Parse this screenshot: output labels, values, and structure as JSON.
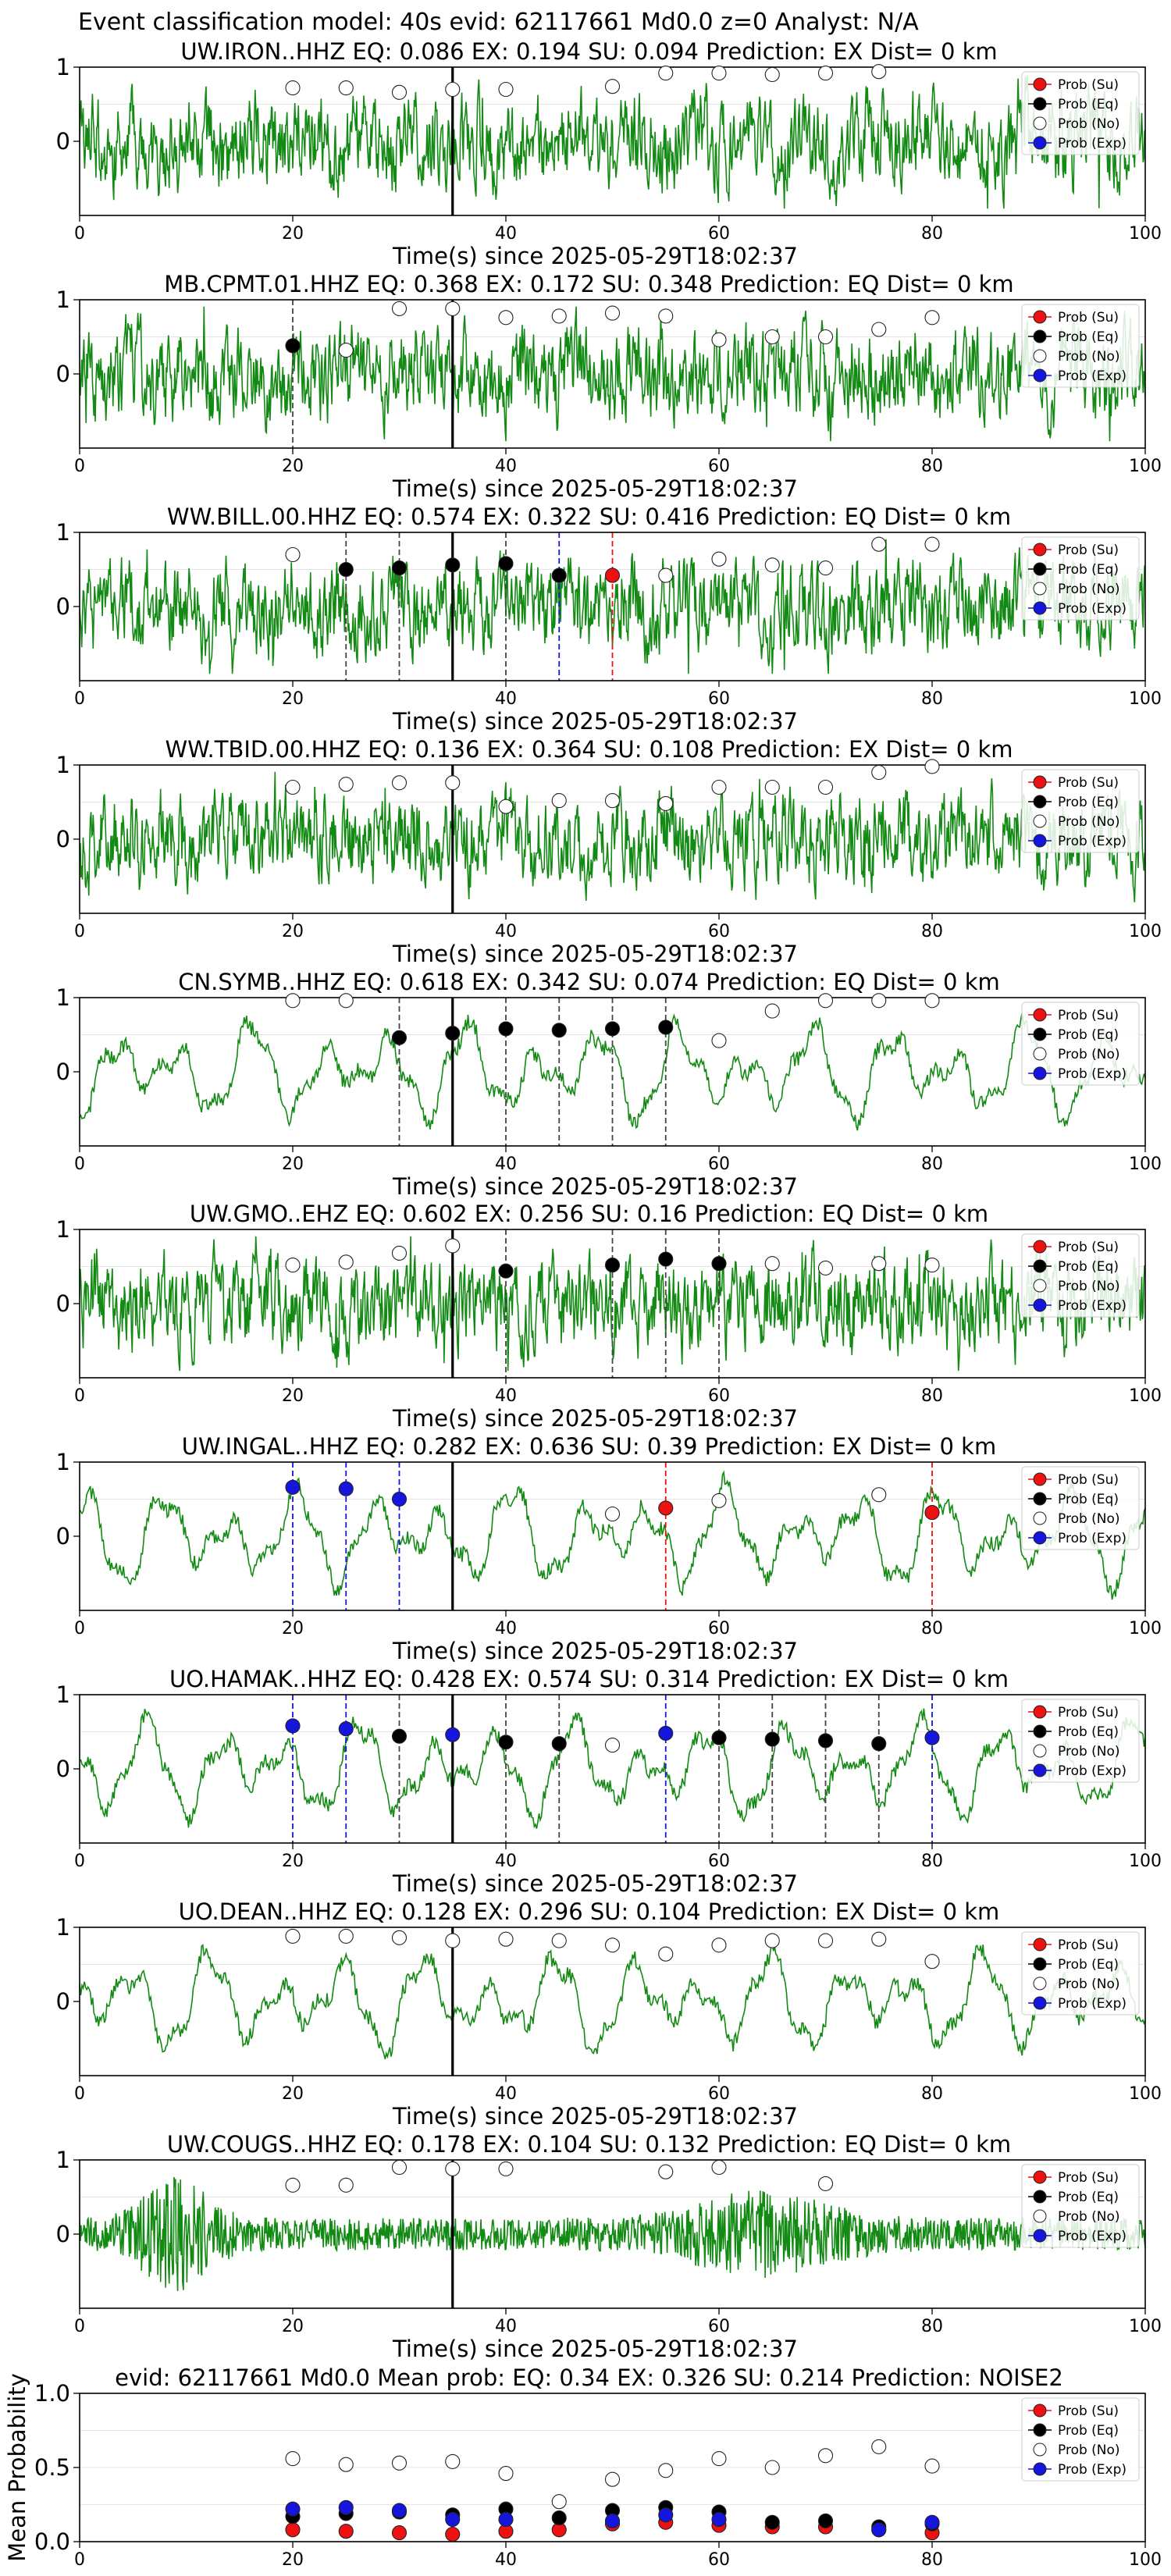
{
  "figure": {
    "suptitle": "Event classification model: 40s evid: 62117661 Md0.0 z=0 Analyst: N/A",
    "legend_labels": [
      "Prob (Su)",
      "Prob (Eq)",
      "Prob (No)",
      "Prob (Exp)"
    ],
    "colors": {
      "su": "#ee1111",
      "eq": "#000000",
      "no": "#ffffff",
      "exp": "#1515dd",
      "trace": "#138a13"
    }
  },
  "chart_data": [
    {
      "type": "line",
      "title": "UW.IRON..HHZ   EQ: 0.086  EX: 0.194  SU: 0.094   Prediction: EX    Dist= 0 km",
      "xlabel": "Time(s) since 2025-05-29T18:02:37",
      "xlim": [
        0,
        100
      ],
      "ylim": [
        -1,
        1
      ],
      "xticks": [
        0,
        20,
        40,
        60,
        80,
        100
      ],
      "yticks": [
        0,
        1
      ],
      "onset": 35,
      "trace_style": "spiky",
      "windows": [
        20,
        25,
        30,
        35,
        40,
        45,
        50,
        55,
        60,
        65,
        70,
        75,
        80
      ],
      "series": [
        {
          "name": "Prob (No)",
          "y": [
            0.72,
            0.72,
            0.66,
            0.7,
            0.7,
            null,
            0.74,
            0.92,
            0.92,
            0.9,
            0.92,
            0.94,
            null
          ]
        }
      ],
      "dashed_lines": []
    },
    {
      "type": "line",
      "title": "MB.CPMT.01.HHZ   EQ: 0.368  EX: 0.172  SU: 0.348   Prediction: EQ    Dist= 0 km",
      "xlabel": "Time(s) since 2025-05-29T18:02:37",
      "xlim": [
        0,
        100
      ],
      "ylim": [
        -1,
        1
      ],
      "xticks": [
        0,
        20,
        40,
        60,
        80,
        100
      ],
      "yticks": [
        0,
        1
      ],
      "onset": 35,
      "trace_style": "spiky",
      "windows": [
        20,
        25,
        30,
        35,
        40,
        45,
        50,
        55,
        60,
        65,
        70,
        75,
        80
      ],
      "series": [
        {
          "name": "Prob (Eq)",
          "y": [
            0.38,
            null,
            null,
            null,
            null,
            null,
            null,
            null,
            null,
            null,
            null,
            null,
            null
          ]
        },
        {
          "name": "Prob (No)",
          "y": [
            null,
            0.32,
            0.88,
            0.88,
            0.76,
            0.78,
            0.82,
            0.78,
            0.46,
            0.5,
            0.5,
            0.6,
            0.76
          ]
        }
      ],
      "dashed_lines": [
        {
          "x": 20,
          "color": "#444444"
        }
      ]
    },
    {
      "type": "line",
      "title": "WW.BILL.00.HHZ   EQ: 0.574  EX: 0.322  SU: 0.416   Prediction: EQ    Dist= 0 km",
      "xlabel": "Time(s) since 2025-05-29T18:02:37",
      "xlim": [
        0,
        100
      ],
      "ylim": [
        -1,
        1
      ],
      "xticks": [
        0,
        20,
        40,
        60,
        80,
        100
      ],
      "yticks": [
        0,
        1
      ],
      "onset": 35,
      "trace_style": "spiky",
      "windows": [
        20,
        25,
        30,
        35,
        40,
        45,
        50,
        55,
        60,
        65,
        70,
        75,
        80
      ],
      "series": [
        {
          "name": "Prob (Su)",
          "y": [
            null,
            null,
            null,
            null,
            null,
            null,
            0.42,
            null,
            null,
            null,
            null,
            null,
            null
          ]
        },
        {
          "name": "Prob (Eq)",
          "y": [
            null,
            0.5,
            0.52,
            0.56,
            0.58,
            0.42,
            null,
            null,
            null,
            null,
            null,
            null,
            null
          ]
        },
        {
          "name": "Prob (No)",
          "y": [
            0.7,
            null,
            null,
            null,
            null,
            null,
            null,
            0.42,
            0.64,
            0.56,
            0.52,
            0.84,
            0.84
          ]
        }
      ],
      "dashed_lines": [
        {
          "x": 25,
          "color": "#444444"
        },
        {
          "x": 30,
          "color": "#444444"
        },
        {
          "x": 40,
          "color": "#444444"
        },
        {
          "x": 45,
          "color": "#1515dd"
        },
        {
          "x": 50,
          "color": "#ee1111"
        }
      ]
    },
    {
      "type": "line",
      "title": "WW.TBID.00.HHZ   EQ: 0.136  EX: 0.364  SU: 0.108   Prediction: EX    Dist= 0 km",
      "xlabel": "Time(s) since 2025-05-29T18:02:37",
      "xlim": [
        0,
        100
      ],
      "ylim": [
        -1,
        1
      ],
      "xticks": [
        0,
        20,
        40,
        60,
        80,
        100
      ],
      "yticks": [
        0,
        1
      ],
      "onset": 35,
      "trace_style": "spiky",
      "windows": [
        20,
        25,
        30,
        35,
        40,
        45,
        50,
        55,
        60,
        65,
        70,
        75,
        80
      ],
      "series": [
        {
          "name": "Prob (No)",
          "y": [
            0.7,
            0.74,
            0.76,
            0.76,
            0.44,
            0.52,
            0.52,
            0.48,
            0.7,
            0.7,
            0.7,
            0.9,
            0.98
          ]
        }
      ],
      "dashed_lines": []
    },
    {
      "type": "line",
      "title": "CN.SYMB..HHZ   EQ: 0.618  EX: 0.342  SU: 0.074   Prediction: EQ    Dist= 0 km",
      "xlabel": "Time(s) since 2025-05-29T18:02:37",
      "xlim": [
        0,
        100
      ],
      "ylim": [
        -1,
        1
      ],
      "xticks": [
        0,
        20,
        40,
        60,
        80,
        100
      ],
      "yticks": [
        0,
        1
      ],
      "onset": 35,
      "trace_style": "smooth",
      "windows": [
        20,
        25,
        30,
        35,
        40,
        45,
        50,
        55,
        60,
        65,
        70,
        75,
        80
      ],
      "series": [
        {
          "name": "Prob (Eq)",
          "y": [
            null,
            null,
            0.46,
            0.52,
            0.58,
            0.56,
            0.58,
            0.6,
            null,
            null,
            null,
            null,
            null
          ]
        },
        {
          "name": "Prob (No)",
          "y": [
            0.96,
            0.96,
            null,
            null,
            null,
            null,
            null,
            null,
            0.42,
            0.82,
            0.96,
            0.96,
            0.96
          ]
        }
      ],
      "dashed_lines": [
        {
          "x": 30,
          "color": "#444444"
        },
        {
          "x": 40,
          "color": "#444444"
        },
        {
          "x": 45,
          "color": "#444444"
        },
        {
          "x": 50,
          "color": "#444444"
        },
        {
          "x": 55,
          "color": "#444444"
        }
      ]
    },
    {
      "type": "line",
      "title": "UW.GMO..EHZ   EQ: 0.602  EX: 0.256  SU: 0.16   Prediction: EQ    Dist= 0 km",
      "xlabel": "Time(s) since 2025-05-29T18:02:37",
      "xlim": [
        0,
        100
      ],
      "ylim": [
        -1,
        1
      ],
      "xticks": [
        0,
        20,
        40,
        60,
        80,
        100
      ],
      "yticks": [
        0,
        1
      ],
      "onset": 35,
      "trace_style": "spiky",
      "windows": [
        20,
        25,
        30,
        35,
        40,
        45,
        50,
        55,
        60,
        65,
        70,
        75,
        80
      ],
      "series": [
        {
          "name": "Prob (Eq)",
          "y": [
            null,
            null,
            null,
            null,
            0.44,
            null,
            0.52,
            0.6,
            0.54,
            null,
            null,
            null,
            null
          ]
        },
        {
          "name": "Prob (No)",
          "y": [
            0.52,
            0.56,
            0.68,
            0.78,
            null,
            null,
            null,
            null,
            null,
            0.54,
            0.48,
            0.54,
            0.52
          ]
        }
      ],
      "dashed_lines": [
        {
          "x": 40,
          "color": "#444444"
        },
        {
          "x": 50,
          "color": "#444444"
        },
        {
          "x": 55,
          "color": "#444444"
        },
        {
          "x": 60,
          "color": "#444444"
        }
      ]
    },
    {
      "type": "line",
      "title": "UW.INGAL..HHZ   EQ: 0.282  EX: 0.636  SU: 0.39   Prediction: EX    Dist= 0 km",
      "xlabel": "Time(s) since 2025-05-29T18:02:37",
      "xlim": [
        0,
        100
      ],
      "ylim": [
        -1,
        1
      ],
      "xticks": [
        0,
        20,
        40,
        60,
        80,
        100
      ],
      "yticks": [
        0,
        1
      ],
      "onset": 35,
      "trace_style": "smooth",
      "windows": [
        20,
        25,
        30,
        35,
        40,
        45,
        50,
        55,
        60,
        65,
        70,
        75,
        80
      ],
      "series": [
        {
          "name": "Prob (Su)",
          "y": [
            null,
            null,
            null,
            null,
            null,
            null,
            null,
            0.38,
            null,
            null,
            null,
            null,
            0.32
          ]
        },
        {
          "name": "Prob (No)",
          "y": [
            null,
            null,
            null,
            null,
            null,
            null,
            0.3,
            null,
            0.48,
            null,
            null,
            0.56,
            null
          ]
        },
        {
          "name": "Prob (Exp)",
          "y": [
            0.66,
            0.64,
            0.5,
            null,
            null,
            null,
            null,
            null,
            null,
            null,
            null,
            null,
            null
          ]
        }
      ],
      "dashed_lines": [
        {
          "x": 20,
          "color": "#1515dd"
        },
        {
          "x": 25,
          "color": "#1515dd"
        },
        {
          "x": 30,
          "color": "#1515dd"
        },
        {
          "x": 55,
          "color": "#ee1111"
        },
        {
          "x": 80,
          "color": "#ee1111"
        }
      ]
    },
    {
      "type": "line",
      "title": "UO.HAMAK..HHZ   EQ: 0.428  EX: 0.574  SU: 0.314   Prediction: EX    Dist= 0 km",
      "xlabel": "Time(s) since 2025-05-29T18:02:37",
      "xlim": [
        0,
        100
      ],
      "ylim": [
        -1,
        1
      ],
      "xticks": [
        0,
        20,
        40,
        60,
        80,
        100
      ],
      "yticks": [
        0,
        1
      ],
      "onset": 35,
      "trace_style": "smooth",
      "windows": [
        20,
        25,
        30,
        35,
        40,
        45,
        50,
        55,
        60,
        65,
        70,
        75,
        80
      ],
      "series": [
        {
          "name": "Prob (Eq)",
          "y": [
            null,
            null,
            0.44,
            null,
            0.36,
            0.34,
            null,
            null,
            0.42,
            0.4,
            0.38,
            0.34,
            null
          ]
        },
        {
          "name": "Prob (No)",
          "y": [
            null,
            null,
            null,
            null,
            null,
            null,
            0.32,
            null,
            null,
            null,
            null,
            null,
            null
          ]
        },
        {
          "name": "Prob (Exp)",
          "y": [
            0.58,
            0.54,
            null,
            0.46,
            null,
            null,
            null,
            0.48,
            null,
            null,
            null,
            null,
            0.42
          ]
        }
      ],
      "dashed_lines": [
        {
          "x": 20,
          "color": "#1515dd"
        },
        {
          "x": 25,
          "color": "#1515dd"
        },
        {
          "x": 30,
          "color": "#444444"
        },
        {
          "x": 40,
          "color": "#444444"
        },
        {
          "x": 45,
          "color": "#444444"
        },
        {
          "x": 55,
          "color": "#1515dd"
        },
        {
          "x": 60,
          "color": "#444444"
        },
        {
          "x": 65,
          "color": "#444444"
        },
        {
          "x": 70,
          "color": "#444444"
        },
        {
          "x": 75,
          "color": "#444444"
        },
        {
          "x": 80,
          "color": "#1515dd"
        }
      ]
    },
    {
      "type": "line",
      "title": "UO.DEAN..HHZ   EQ: 0.128  EX: 0.296  SU: 0.104   Prediction: EX    Dist= 0 km",
      "xlabel": "Time(s) since 2025-05-29T18:02:37",
      "xlim": [
        0,
        100
      ],
      "ylim": [
        -1,
        1
      ],
      "xticks": [
        0,
        20,
        40,
        60,
        80,
        100
      ],
      "yticks": [
        0,
        1
      ],
      "onset": 35,
      "trace_style": "smooth",
      "windows": [
        20,
        25,
        30,
        35,
        40,
        45,
        50,
        55,
        60,
        65,
        70,
        75,
        80
      ],
      "series": [
        {
          "name": "Prob (No)",
          "y": [
            0.88,
            0.88,
            0.86,
            0.82,
            0.84,
            0.82,
            0.76,
            0.64,
            0.76,
            0.82,
            0.82,
            0.84,
            0.54
          ]
        }
      ],
      "dashed_lines": []
    },
    {
      "type": "line",
      "title": "UW.COUGS..HHZ   EQ: 0.178  EX: 0.104  SU: 0.132   Prediction: EQ    Dist= 0 km",
      "xlabel": "Time(s) since 2025-05-29T18:02:37",
      "xlim": [
        0,
        100
      ],
      "ylim": [
        -1,
        1
      ],
      "xticks": [
        0,
        20,
        40,
        60,
        80,
        100
      ],
      "yticks": [
        0,
        1
      ],
      "onset": 35,
      "trace_style": "burst",
      "windows": [
        20,
        25,
        30,
        35,
        40,
        45,
        50,
        55,
        60,
        65,
        70,
        75,
        80
      ],
      "series": [
        {
          "name": "Prob (No)",
          "y": [
            0.66,
            0.66,
            0.9,
            0.88,
            0.88,
            null,
            null,
            0.84,
            0.9,
            null,
            0.68,
            null,
            null
          ]
        }
      ],
      "dashed_lines": []
    },
    {
      "type": "scatter",
      "title": "evid: 62117661  Md0.0   Mean prob:   EQ: 0.34  EX: 0.326  SU: 0.214   Prediction: NOISE2",
      "ylabel": "Mean Probability",
      "xlim": [
        0,
        100
      ],
      "ylim": [
        0,
        1
      ],
      "xticks": [
        0,
        20,
        40,
        60,
        80,
        100
      ],
      "yticks": [
        0.0,
        0.5,
        1.0
      ],
      "windows": [
        20,
        25,
        30,
        35,
        40,
        45,
        50,
        55,
        60,
        65,
        70,
        75,
        80
      ],
      "series": [
        {
          "name": "Prob (Su)",
          "y": [
            0.08,
            0.07,
            0.06,
            0.05,
            0.07,
            0.08,
            0.12,
            0.13,
            0.11,
            0.1,
            0.1,
            0.08,
            0.06
          ]
        },
        {
          "name": "Prob (Eq)",
          "y": [
            0.17,
            0.19,
            0.2,
            0.18,
            0.22,
            0.16,
            0.21,
            0.23,
            0.2,
            0.13,
            0.14,
            0.1,
            0.12
          ]
        },
        {
          "name": "Prob (No)",
          "y": [
            0.56,
            0.52,
            0.53,
            0.54,
            0.46,
            0.27,
            0.42,
            0.48,
            0.56,
            0.5,
            0.58,
            0.64,
            0.51
          ]
        },
        {
          "name": "Prob (Exp)",
          "y": [
            0.22,
            0.23,
            0.21,
            0.15,
            0.15,
            null,
            0.14,
            0.18,
            0.15,
            null,
            null,
            0.08,
            0.13
          ]
        }
      ]
    }
  ]
}
